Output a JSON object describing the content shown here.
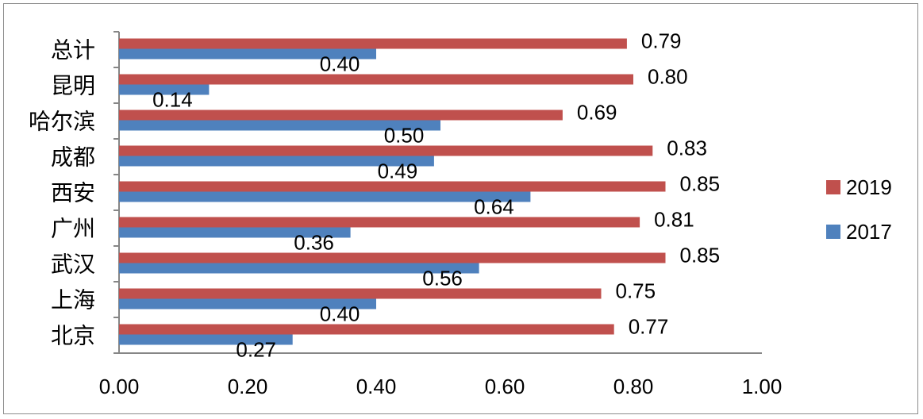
{
  "chart_data": {
    "type": "bar",
    "orientation": "horizontal",
    "categories": [
      "总计",
      "昆明",
      "哈尔滨",
      "成都",
      "西安",
      "广州",
      "武汉",
      "上海",
      "北京"
    ],
    "series": [
      {
        "name": "2019",
        "color": "#C0504D",
        "values": [
          0.79,
          0.8,
          0.69,
          0.83,
          0.85,
          0.81,
          0.85,
          0.75,
          0.77
        ],
        "labels": [
          "0.79",
          "0.80",
          "0.69",
          "0.83",
          "0.85",
          "0.81",
          "0.85",
          "0.75",
          "0.77"
        ]
      },
      {
        "name": "2017",
        "color": "#4F81BD",
        "values": [
          0.4,
          0.14,
          0.5,
          0.49,
          0.64,
          0.36,
          0.56,
          0.4,
          0.27
        ],
        "labels": [
          "0.40",
          "0.14",
          "0.50",
          "0.49",
          "0.64",
          "0.36",
          "0.56",
          "0.40",
          "0.27"
        ]
      }
    ],
    "xlim": [
      0,
      1.0
    ],
    "xticks": [
      "0.00",
      "0.20",
      "0.40",
      "0.60",
      "0.80",
      "1.00"
    ],
    "legend": [
      "2019",
      "2017"
    ],
    "legend_position": "right",
    "grid": false
  }
}
